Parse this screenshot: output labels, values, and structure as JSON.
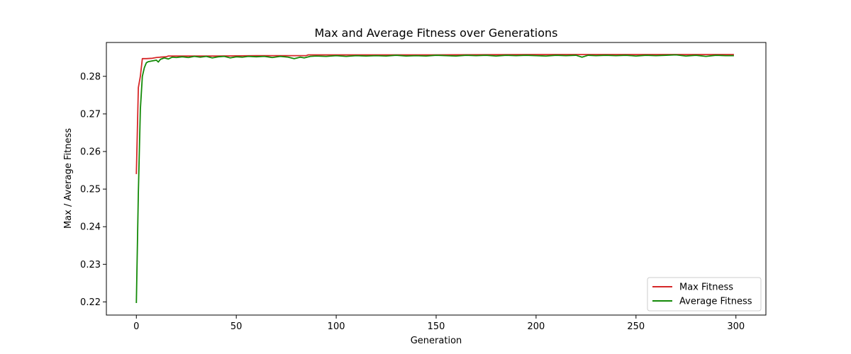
{
  "chart_data": {
    "type": "line",
    "title": "Max and Average Fitness over Generations",
    "xlabel": "Generation",
    "ylabel": "Max / Average Fitness",
    "xlim": [
      -15,
      315
    ],
    "ylim": [
      0.2165,
      0.289
    ],
    "xticks": [
      0,
      50,
      100,
      150,
      200,
      250,
      300
    ],
    "yticks": [
      0.22,
      0.23,
      0.24,
      0.25,
      0.26,
      0.27,
      0.28
    ],
    "ytick_labels": [
      "0.22",
      "0.23",
      "0.24",
      "0.25",
      "0.26",
      "0.27",
      "0.28"
    ],
    "grid": false,
    "legend_position": "lower right",
    "series": [
      {
        "name": "Max Fitness",
        "color": "#d62728",
        "points": [
          [
            0,
            0.254
          ],
          [
            1,
            0.277
          ],
          [
            2,
            0.28
          ],
          [
            3,
            0.2847
          ],
          [
            5,
            0.2847
          ],
          [
            8,
            0.2848
          ],
          [
            10,
            0.285
          ],
          [
            12,
            0.2851
          ],
          [
            15,
            0.2852
          ],
          [
            16,
            0.2854
          ],
          [
            20,
            0.2854
          ],
          [
            40,
            0.2854
          ],
          [
            60,
            0.2855
          ],
          [
            85,
            0.2855
          ],
          [
            86,
            0.2857
          ],
          [
            100,
            0.2857
          ],
          [
            150,
            0.2857
          ],
          [
            200,
            0.2858
          ],
          [
            250,
            0.2858
          ],
          [
            299,
            0.2858
          ]
        ]
      },
      {
        "name": "Average Fitness",
        "color": "#138a07",
        "points": [
          [
            0,
            0.2197
          ],
          [
            1,
            0.249
          ],
          [
            2,
            0.2712
          ],
          [
            3,
            0.28
          ],
          [
            4,
            0.2823
          ],
          [
            5,
            0.2836
          ],
          [
            6,
            0.2839
          ],
          [
            8,
            0.2841
          ],
          [
            10,
            0.2843
          ],
          [
            11,
            0.2838
          ],
          [
            12,
            0.2845
          ],
          [
            14,
            0.2849
          ],
          [
            16,
            0.2846
          ],
          [
            18,
            0.2851
          ],
          [
            20,
            0.285
          ],
          [
            23,
            0.2852
          ],
          [
            26,
            0.285
          ],
          [
            29,
            0.2853
          ],
          [
            32,
            0.2851
          ],
          [
            35,
            0.2853
          ],
          [
            38,
            0.2849
          ],
          [
            41,
            0.2852
          ],
          [
            44,
            0.2853
          ],
          [
            47,
            0.2849
          ],
          [
            50,
            0.2852
          ],
          [
            53,
            0.2851
          ],
          [
            56,
            0.2853
          ],
          [
            60,
            0.2852
          ],
          [
            64,
            0.2853
          ],
          [
            68,
            0.285
          ],
          [
            72,
            0.2853
          ],
          [
            76,
            0.2851
          ],
          [
            79,
            0.2847
          ],
          [
            82,
            0.2851
          ],
          [
            84,
            0.2849
          ],
          [
            87,
            0.2853
          ],
          [
            90,
            0.2854
          ],
          [
            95,
            0.2853
          ],
          [
            100,
            0.2855
          ],
          [
            105,
            0.2853
          ],
          [
            110,
            0.2855
          ],
          [
            115,
            0.2854
          ],
          [
            120,
            0.2855
          ],
          [
            125,
            0.2854
          ],
          [
            130,
            0.2856
          ],
          [
            135,
            0.2854
          ],
          [
            140,
            0.2855
          ],
          [
            145,
            0.2854
          ],
          [
            150,
            0.2856
          ],
          [
            155,
            0.2855
          ],
          [
            160,
            0.2854
          ],
          [
            165,
            0.2856
          ],
          [
            170,
            0.2855
          ],
          [
            175,
            0.2856
          ],
          [
            180,
            0.2854
          ],
          [
            185,
            0.2856
          ],
          [
            190,
            0.2855
          ],
          [
            195,
            0.2856
          ],
          [
            200,
            0.2855
          ],
          [
            205,
            0.2854
          ],
          [
            210,
            0.2856
          ],
          [
            215,
            0.2855
          ],
          [
            220,
            0.2856
          ],
          [
            223,
            0.2851
          ],
          [
            226,
            0.2856
          ],
          [
            230,
            0.2855
          ],
          [
            235,
            0.2856
          ],
          [
            240,
            0.2855
          ],
          [
            245,
            0.2856
          ],
          [
            250,
            0.2854
          ],
          [
            255,
            0.2856
          ],
          [
            260,
            0.2855
          ],
          [
            265,
            0.2856
          ],
          [
            270,
            0.2857
          ],
          [
            275,
            0.2854
          ],
          [
            280,
            0.2856
          ],
          [
            285,
            0.2853
          ],
          [
            290,
            0.2856
          ],
          [
            295,
            0.2855
          ],
          [
            299,
            0.2855
          ]
        ]
      }
    ]
  }
}
